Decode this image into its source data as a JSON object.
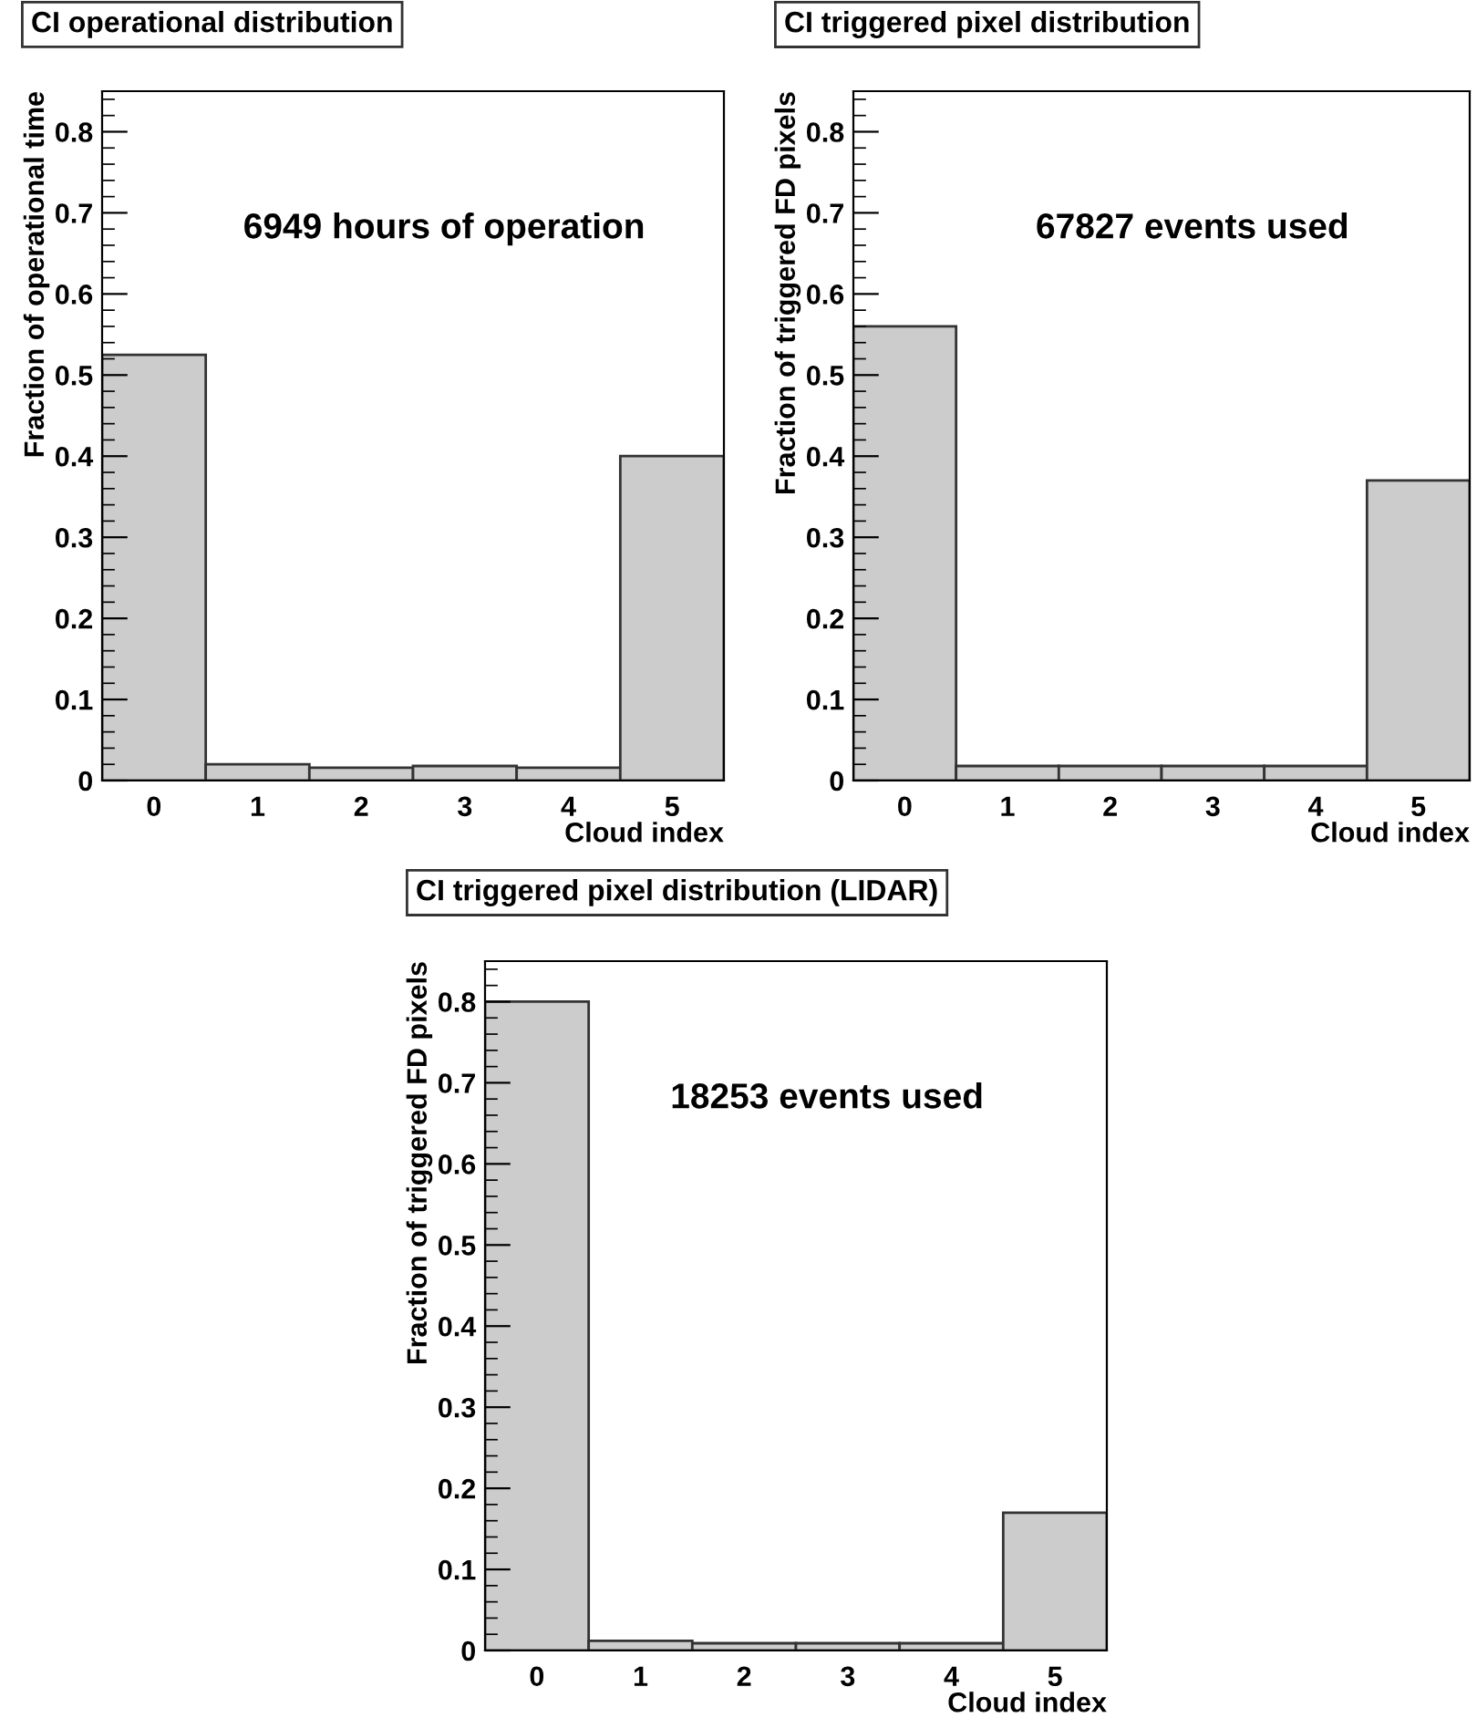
{
  "chart_data": [
    {
      "type": "bar",
      "title": "CI operational distribution",
      "xlabel": "Cloud index",
      "ylabel": "Fraction of operational time",
      "annotations": [
        "6949 hours of operation"
      ],
      "categories": [
        "0",
        "1",
        "2",
        "3",
        "4",
        "5"
      ],
      "values": [
        0.525,
        0.02,
        0.016,
        0.018,
        0.016,
        0.4
      ],
      "color": "#cccccc",
      "ylim": [
        0,
        0.85
      ],
      "yticks": [
        0,
        0.1,
        0.2,
        0.3,
        0.4,
        0.5,
        0.6,
        0.7,
        0.8,
        {
          "value": 0.02,
          "label": null
        },
        {
          "value": 0.04,
          "label": null
        },
        {
          "value": 0.06,
          "label": null
        },
        {
          "value": 0.08,
          "label": null
        },
        {
          "value": 0.12,
          "label": null
        },
        {
          "value": 0.14,
          "label": null
        },
        {
          "value": 0.16,
          "label": null
        },
        {
          "value": 0.18,
          "label": null
        },
        {
          "value": 0.22,
          "label": null
        },
        {
          "value": 0.24,
          "label": null
        },
        {
          "value": 0.26,
          "label": null
        },
        {
          "value": 0.28,
          "label": null
        },
        {
          "value": 0.32,
          "label": null
        },
        {
          "value": 0.34,
          "label": null
        },
        {
          "value": 0.36,
          "label": null
        },
        {
          "value": 0.38,
          "label": null
        },
        {
          "value": 0.42,
          "label": null
        },
        {
          "value": 0.44,
          "label": null
        },
        {
          "value": 0.46,
          "label": null
        },
        {
          "value": 0.48,
          "label": null
        },
        {
          "value": 0.52,
          "label": null
        },
        {
          "value": 0.54,
          "label": null
        },
        {
          "value": 0.56,
          "label": null
        },
        {
          "value": 0.58,
          "label": null
        },
        {
          "value": 0.62,
          "label": null
        },
        {
          "value": 0.64,
          "label": null
        },
        {
          "value": 0.66,
          "label": null
        },
        {
          "value": 0.68,
          "label": null
        },
        {
          "value": 0.72,
          "label": null
        },
        {
          "value": 0.74,
          "label": null
        },
        {
          "value": 0.76,
          "label": null
        },
        {
          "value": 0.78,
          "label": null
        },
        {
          "value": 0.82,
          "label": null
        },
        {
          "value": 0.84,
          "label": null
        }
      ],
      "grid": false,
      "legend": false
    },
    {
      "type": "bar",
      "title": "CI triggered pixel distribution",
      "xlabel": "Cloud index",
      "ylabel": "Fraction of triggered FD pixels",
      "annotations": [
        "67827 events used"
      ],
      "categories": [
        "0",
        "1",
        "2",
        "3",
        "4",
        "5"
      ],
      "values": [
        0.56,
        0.018,
        0.018,
        0.018,
        0.018,
        0.37
      ],
      "color": "#cccccc",
      "ylim": [
        0,
        0.85
      ],
      "yticks": [
        0,
        0.1,
        0.2,
        0.3,
        0.4,
        0.5,
        0.6,
        0.7,
        0.8,
        {
          "value": 0.02,
          "label": null
        },
        {
          "value": 0.04,
          "label": null
        },
        {
          "value": 0.06,
          "label": null
        },
        {
          "value": 0.08,
          "label": null
        },
        {
          "value": 0.12,
          "label": null
        },
        {
          "value": 0.14,
          "label": null
        },
        {
          "value": 0.16,
          "label": null
        },
        {
          "value": 0.18,
          "label": null
        },
        {
          "value": 0.22,
          "label": null
        },
        {
          "value": 0.24,
          "label": null
        },
        {
          "value": 0.26,
          "label": null
        },
        {
          "value": 0.28,
          "label": null
        },
        {
          "value": 0.32,
          "label": null
        },
        {
          "value": 0.34,
          "label": null
        },
        {
          "value": 0.36,
          "label": null
        },
        {
          "value": 0.38,
          "label": null
        },
        {
          "value": 0.42,
          "label": null
        },
        {
          "value": 0.44,
          "label": null
        },
        {
          "value": 0.46,
          "label": null
        },
        {
          "value": 0.48,
          "label": null
        },
        {
          "value": 0.52,
          "label": null
        },
        {
          "value": 0.54,
          "label": null
        },
        {
          "value": 0.56,
          "label": null
        },
        {
          "value": 0.58,
          "label": null
        },
        {
          "value": 0.62,
          "label": null
        },
        {
          "value": 0.64,
          "label": null
        },
        {
          "value": 0.66,
          "label": null
        },
        {
          "value": 0.68,
          "label": null
        },
        {
          "value": 0.72,
          "label": null
        },
        {
          "value": 0.74,
          "label": null
        },
        {
          "value": 0.76,
          "label": null
        },
        {
          "value": 0.78,
          "label": null
        },
        {
          "value": 0.82,
          "label": null
        },
        {
          "value": 0.84,
          "label": null
        }
      ],
      "grid": false,
      "legend": false
    },
    {
      "type": "bar",
      "title": "CI triggered pixel distribution (LIDAR)",
      "xlabel": "Cloud index",
      "ylabel": "Fraction of triggered FD pixels",
      "annotations": [
        "18253 events used"
      ],
      "categories": [
        "0",
        "1",
        "2",
        "3",
        "4",
        "5"
      ],
      "values": [
        0.8,
        0.012,
        0.009,
        0.009,
        0.009,
        0.17
      ],
      "color": "#cccccc",
      "ylim": [
        0,
        0.85
      ],
      "yticks": [
        0,
        0.1,
        0.2,
        0.3,
        0.4,
        0.5,
        0.6,
        0.7,
        0.8,
        {
          "value": 0.02,
          "label": null
        },
        {
          "value": 0.04,
          "label": null
        },
        {
          "value": 0.06,
          "label": null
        },
        {
          "value": 0.08,
          "label": null
        },
        {
          "value": 0.12,
          "label": null
        },
        {
          "value": 0.14,
          "label": null
        },
        {
          "value": 0.16,
          "label": null
        },
        {
          "value": 0.18,
          "label": null
        },
        {
          "value": 0.22,
          "label": null
        },
        {
          "value": 0.24,
          "label": null
        },
        {
          "value": 0.26,
          "label": null
        },
        {
          "value": 0.28,
          "label": null
        },
        {
          "value": 0.32,
          "label": null
        },
        {
          "value": 0.34,
          "label": null
        },
        {
          "value": 0.36,
          "label": null
        },
        {
          "value": 0.38,
          "label": null
        },
        {
          "value": 0.42,
          "label": null
        },
        {
          "value": 0.44,
          "label": null
        },
        {
          "value": 0.46,
          "label": null
        },
        {
          "value": 0.48,
          "label": null
        },
        {
          "value": 0.52,
          "label": null
        },
        {
          "value": 0.54,
          "label": null
        },
        {
          "value": 0.56,
          "label": null
        },
        {
          "value": 0.58,
          "label": null
        },
        {
          "value": 0.62,
          "label": null
        },
        {
          "value": 0.64,
          "label": null
        },
        {
          "value": 0.66,
          "label": null
        },
        {
          "value": 0.68,
          "label": null
        },
        {
          "value": 0.72,
          "label": null
        },
        {
          "value": 0.74,
          "label": null
        },
        {
          "value": 0.76,
          "label": null
        },
        {
          "value": 0.78,
          "label": null
        },
        {
          "value": 0.82,
          "label": null
        },
        {
          "value": 0.84,
          "label": null
        }
      ],
      "grid": false,
      "legend": false
    }
  ]
}
